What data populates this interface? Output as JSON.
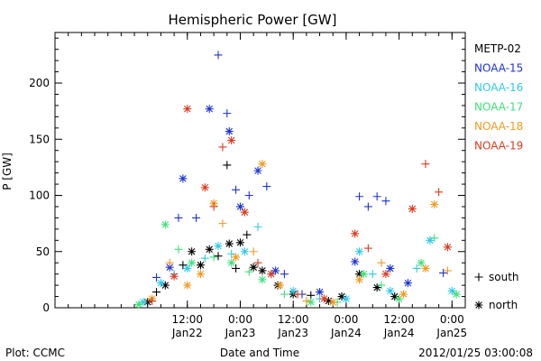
{
  "chart_data": {
    "type": "scatter",
    "title": "Hemispheric Power [GW]",
    "xlabel": "Date and Time",
    "ylabel": "P [GW]",
    "xlim": [
      "2012-01-21 06:00",
      "2012-01-25 03:00"
    ],
    "ylim": [
      0,
      245
    ],
    "yticks": [
      0,
      50,
      100,
      150,
      200
    ],
    "xticks": [
      {
        "x": "2012-01-22 12:00",
        "time": "12:00",
        "date": "Jan22"
      },
      {
        "x": "2012-01-23 00:00",
        "time": "0:00",
        "date": "Jan23"
      },
      {
        "x": "2012-01-23 12:00",
        "time": "12:00",
        "date": "Jan23"
      },
      {
        "x": "2012-01-24 00:00",
        "time": "0:00",
        "date": "Jan24"
      },
      {
        "x": "2012-01-24 12:00",
        "time": "12:00",
        "date": "Jan24"
      },
      {
        "x": "2012-01-25 00:00",
        "time": "0:00",
        "date": "Jan25"
      }
    ],
    "marker_legend": [
      {
        "marker": "+",
        "label": "south"
      },
      {
        "marker": "*",
        "label": "north"
      }
    ],
    "series": [
      {
        "name": "METP-02",
        "color": "#000000",
        "points": [
          {
            "x": "2012-01-22 03:00",
            "y": 5,
            "m": "*"
          },
          {
            "x": "2012-01-22 05:00",
            "y": 14,
            "m": "+"
          },
          {
            "x": "2012-01-22 07:00",
            "y": 20,
            "m": "*"
          },
          {
            "x": "2012-01-22 11:00",
            "y": 38,
            "m": "+"
          },
          {
            "x": "2012-01-22 13:00",
            "y": 50,
            "m": "*"
          },
          {
            "x": "2012-01-22 15:00",
            "y": 38,
            "m": "*"
          },
          {
            "x": "2012-01-22 17:00",
            "y": 52,
            "m": "*"
          },
          {
            "x": "2012-01-22 19:00",
            "y": 46,
            "m": "+"
          },
          {
            "x": "2012-01-22 21:00",
            "y": 127,
            "m": "+"
          },
          {
            "x": "2012-01-22 21:30",
            "y": 57,
            "m": "*"
          },
          {
            "x": "2012-01-22 23:00",
            "y": 35,
            "m": "+"
          },
          {
            "x": "2012-01-23 00:00",
            "y": 58,
            "m": "*"
          },
          {
            "x": "2012-01-23 01:30",
            "y": 65,
            "m": "+"
          },
          {
            "x": "2012-01-23 03:00",
            "y": 36,
            "m": "*"
          },
          {
            "x": "2012-01-23 05:00",
            "y": 33,
            "m": "*"
          },
          {
            "x": "2012-01-23 08:30",
            "y": 20,
            "m": "*"
          },
          {
            "x": "2012-01-23 12:00",
            "y": 12,
            "m": "*"
          },
          {
            "x": "2012-01-23 16:00",
            "y": 11,
            "m": "+"
          },
          {
            "x": "2012-01-23 20:00",
            "y": 6,
            "m": "*"
          },
          {
            "x": "2012-01-23 23:00",
            "y": 10,
            "m": "*"
          },
          {
            "x": "2012-01-24 03:00",
            "y": 30,
            "m": "*"
          },
          {
            "x": "2012-01-24 07:00",
            "y": 18,
            "m": "*"
          },
          {
            "x": "2012-01-24 11:00",
            "y": 10,
            "m": "*"
          }
        ]
      },
      {
        "name": "NOAA-15",
        "color": "#1c33d6",
        "points": [
          {
            "x": "2012-01-22 05:00",
            "y": 27,
            "m": "+"
          },
          {
            "x": "2012-01-22 08:00",
            "y": 36,
            "m": "*"
          },
          {
            "x": "2012-01-22 10:00",
            "y": 80,
            "m": "+"
          },
          {
            "x": "2012-01-22 11:00",
            "y": 115,
            "m": "*"
          },
          {
            "x": "2012-01-22 14:00",
            "y": 80,
            "m": "+"
          },
          {
            "x": "2012-01-22 17:00",
            "y": 177,
            "m": "*"
          },
          {
            "x": "2012-01-22 19:00",
            "y": 225,
            "m": "+"
          },
          {
            "x": "2012-01-22 21:00",
            "y": 173,
            "m": "+"
          },
          {
            "x": "2012-01-22 21:30",
            "y": 157,
            "m": "*"
          },
          {
            "x": "2012-01-22 23:00",
            "y": 105,
            "m": "+"
          },
          {
            "x": "2012-01-23 00:00",
            "y": 90,
            "m": "*"
          },
          {
            "x": "2012-01-23 02:00",
            "y": 100,
            "m": "+"
          },
          {
            "x": "2012-01-23 04:00",
            "y": 122,
            "m": "*"
          },
          {
            "x": "2012-01-23 06:00",
            "y": 108,
            "m": "+"
          },
          {
            "x": "2012-01-23 08:00",
            "y": 33,
            "m": "*"
          },
          {
            "x": "2012-01-23 10:00",
            "y": 30,
            "m": "+"
          },
          {
            "x": "2012-01-23 14:00",
            "y": 12,
            "m": "+"
          },
          {
            "x": "2012-01-23 18:00",
            "y": 14,
            "m": "*"
          },
          {
            "x": "2012-01-24 02:00",
            "y": 41,
            "m": "*"
          },
          {
            "x": "2012-01-24 03:00",
            "y": 99,
            "m": "+"
          },
          {
            "x": "2012-01-24 05:00",
            "y": 90,
            "m": "+"
          },
          {
            "x": "2012-01-24 07:00",
            "y": 99,
            "m": "+"
          },
          {
            "x": "2012-01-24 09:00",
            "y": 95,
            "m": "+"
          },
          {
            "x": "2012-01-24 10:00",
            "y": 35,
            "m": "*"
          },
          {
            "x": "2012-01-24 14:00",
            "y": 22,
            "m": "*"
          },
          {
            "x": "2012-01-24 22:00",
            "y": 31,
            "m": "+"
          }
        ]
      },
      {
        "name": "NOAA-16",
        "color": "#2fc9e8",
        "points": [
          {
            "x": "2012-01-22 02:00",
            "y": 5,
            "m": "*"
          },
          {
            "x": "2012-01-22 06:00",
            "y": 22,
            "m": "*"
          },
          {
            "x": "2012-01-22 09:00",
            "y": 30,
            "m": "+"
          },
          {
            "x": "2012-01-22 12:00",
            "y": 35,
            "m": "*"
          },
          {
            "x": "2012-01-22 16:00",
            "y": 44,
            "m": "+"
          },
          {
            "x": "2012-01-22 19:00",
            "y": 55,
            "m": "*"
          },
          {
            "x": "2012-01-22 22:00",
            "y": 48,
            "m": "+"
          },
          {
            "x": "2012-01-23 01:00",
            "y": 50,
            "m": "*"
          },
          {
            "x": "2012-01-23 04:00",
            "y": 72,
            "m": "+"
          },
          {
            "x": "2012-01-23 07:00",
            "y": 30,
            "m": "*"
          },
          {
            "x": "2012-01-23 12:00",
            "y": 15,
            "m": "*"
          },
          {
            "x": "2012-01-23 18:00",
            "y": 8,
            "m": "+"
          },
          {
            "x": "2012-01-24 00:00",
            "y": 8,
            "m": "*"
          },
          {
            "x": "2012-01-24 03:00",
            "y": 50,
            "m": "*"
          },
          {
            "x": "2012-01-24 06:00",
            "y": 30,
            "m": "+"
          },
          {
            "x": "2012-01-24 10:00",
            "y": 15,
            "m": "*"
          },
          {
            "x": "2012-01-24 16:00",
            "y": 35,
            "m": "+"
          },
          {
            "x": "2012-01-24 19:00",
            "y": 60,
            "m": "*"
          },
          {
            "x": "2012-01-25 00:00",
            "y": 15,
            "m": "*"
          }
        ]
      },
      {
        "name": "NOAA-17",
        "color": "#3ee07c",
        "points": [
          {
            "x": "2012-01-22 01:00",
            "y": 3,
            "m": "*"
          },
          {
            "x": "2012-01-22 07:00",
            "y": 74,
            "m": "*"
          },
          {
            "x": "2012-01-22 10:00",
            "y": 52,
            "m": "+"
          },
          {
            "x": "2012-01-22 13:00",
            "y": 40,
            "m": "*"
          },
          {
            "x": "2012-01-22 18:00",
            "y": 45,
            "m": "+"
          },
          {
            "x": "2012-01-22 22:00",
            "y": 40,
            "m": "*"
          },
          {
            "x": "2012-01-23 02:00",
            "y": 32,
            "m": "+"
          },
          {
            "x": "2012-01-23 05:00",
            "y": 25,
            "m": "*"
          },
          {
            "x": "2012-01-23 10:00",
            "y": 12,
            "m": "+"
          },
          {
            "x": "2012-01-23 16:00",
            "y": 5,
            "m": "*"
          },
          {
            "x": "2012-01-23 22:00",
            "y": 5,
            "m": "+"
          },
          {
            "x": "2012-01-24 04:00",
            "y": 30,
            "m": "*"
          },
          {
            "x": "2012-01-24 08:00",
            "y": 20,
            "m": "+"
          },
          {
            "x": "2012-01-24 12:00",
            "y": 8,
            "m": "*"
          },
          {
            "x": "2012-01-24 17:00",
            "y": 40,
            "m": "*"
          },
          {
            "x": "2012-01-24 20:00",
            "y": 62,
            "m": "+"
          },
          {
            "x": "2012-01-25 01:00",
            "y": 12,
            "m": "*"
          }
        ]
      },
      {
        "name": "NOAA-18",
        "color": "#ef9a1e",
        "points": [
          {
            "x": "2012-01-22 04:00",
            "y": 8,
            "m": "*"
          },
          {
            "x": "2012-01-22 08:00",
            "y": 40,
            "m": "+"
          },
          {
            "x": "2012-01-22 12:00",
            "y": 20,
            "m": "*"
          },
          {
            "x": "2012-01-22 15:00",
            "y": 30,
            "m": "*"
          },
          {
            "x": "2012-01-22 18:00",
            "y": 93,
            "m": "*"
          },
          {
            "x": "2012-01-22 20:00",
            "y": 75,
            "m": "+"
          },
          {
            "x": "2012-01-22 23:00",
            "y": 45,
            "m": "*"
          },
          {
            "x": "2012-01-23 03:00",
            "y": 50,
            "m": "+"
          },
          {
            "x": "2012-01-23 05:00",
            "y": 128,
            "m": "*"
          },
          {
            "x": "2012-01-23 09:00",
            "y": 20,
            "m": "*"
          },
          {
            "x": "2012-01-23 15:00",
            "y": 6,
            "m": "+"
          },
          {
            "x": "2012-01-23 21:00",
            "y": 5,
            "m": "*"
          },
          {
            "x": "2012-01-24 03:00",
            "y": 25,
            "m": "*"
          },
          {
            "x": "2012-01-24 08:00",
            "y": 40,
            "m": "+"
          },
          {
            "x": "2012-01-24 13:00",
            "y": 12,
            "m": "*"
          },
          {
            "x": "2012-01-24 18:00",
            "y": 35,
            "m": "*"
          },
          {
            "x": "2012-01-24 20:00",
            "y": 92,
            "m": "*"
          },
          {
            "x": "2012-01-24 23:00",
            "y": 33,
            "m": "+"
          }
        ]
      },
      {
        "name": "NOAA-19",
        "color": "#dd3a1e",
        "points": [
          {
            "x": "2012-01-22 04:00",
            "y": 6,
            "m": "+"
          },
          {
            "x": "2012-01-22 09:00",
            "y": 28,
            "m": "*"
          },
          {
            "x": "2012-01-22 12:00",
            "y": 177,
            "m": "*"
          },
          {
            "x": "2012-01-22 16:00",
            "y": 107,
            "m": "*"
          },
          {
            "x": "2012-01-22 18:00",
            "y": 90,
            "m": "+"
          },
          {
            "x": "2012-01-22 20:00",
            "y": 143,
            "m": "+"
          },
          {
            "x": "2012-01-22 22:00",
            "y": 149,
            "m": "*"
          },
          {
            "x": "2012-01-23 01:00",
            "y": 85,
            "m": "*"
          },
          {
            "x": "2012-01-23 04:00",
            "y": 40,
            "m": "+"
          },
          {
            "x": "2012-01-23 07:00",
            "y": 30,
            "m": "*"
          },
          {
            "x": "2012-01-23 13:00",
            "y": 12,
            "m": "+"
          },
          {
            "x": "2012-01-23 19:00",
            "y": 8,
            "m": "*"
          },
          {
            "x": "2012-01-24 02:00",
            "y": 66,
            "m": "*"
          },
          {
            "x": "2012-01-24 05:00",
            "y": 53,
            "m": "+"
          },
          {
            "x": "2012-01-24 09:00",
            "y": 30,
            "m": "*"
          },
          {
            "x": "2012-01-24 15:00",
            "y": 88,
            "m": "*"
          },
          {
            "x": "2012-01-24 18:00",
            "y": 128,
            "m": "+"
          },
          {
            "x": "2012-01-24 21:00",
            "y": 103,
            "m": "+"
          },
          {
            "x": "2012-01-24 23:00",
            "y": 54,
            "m": "*"
          }
        ]
      }
    ]
  },
  "footer": {
    "left": "Plot: CCMC",
    "timestamp": "2012/01/25 03:00:08"
  }
}
